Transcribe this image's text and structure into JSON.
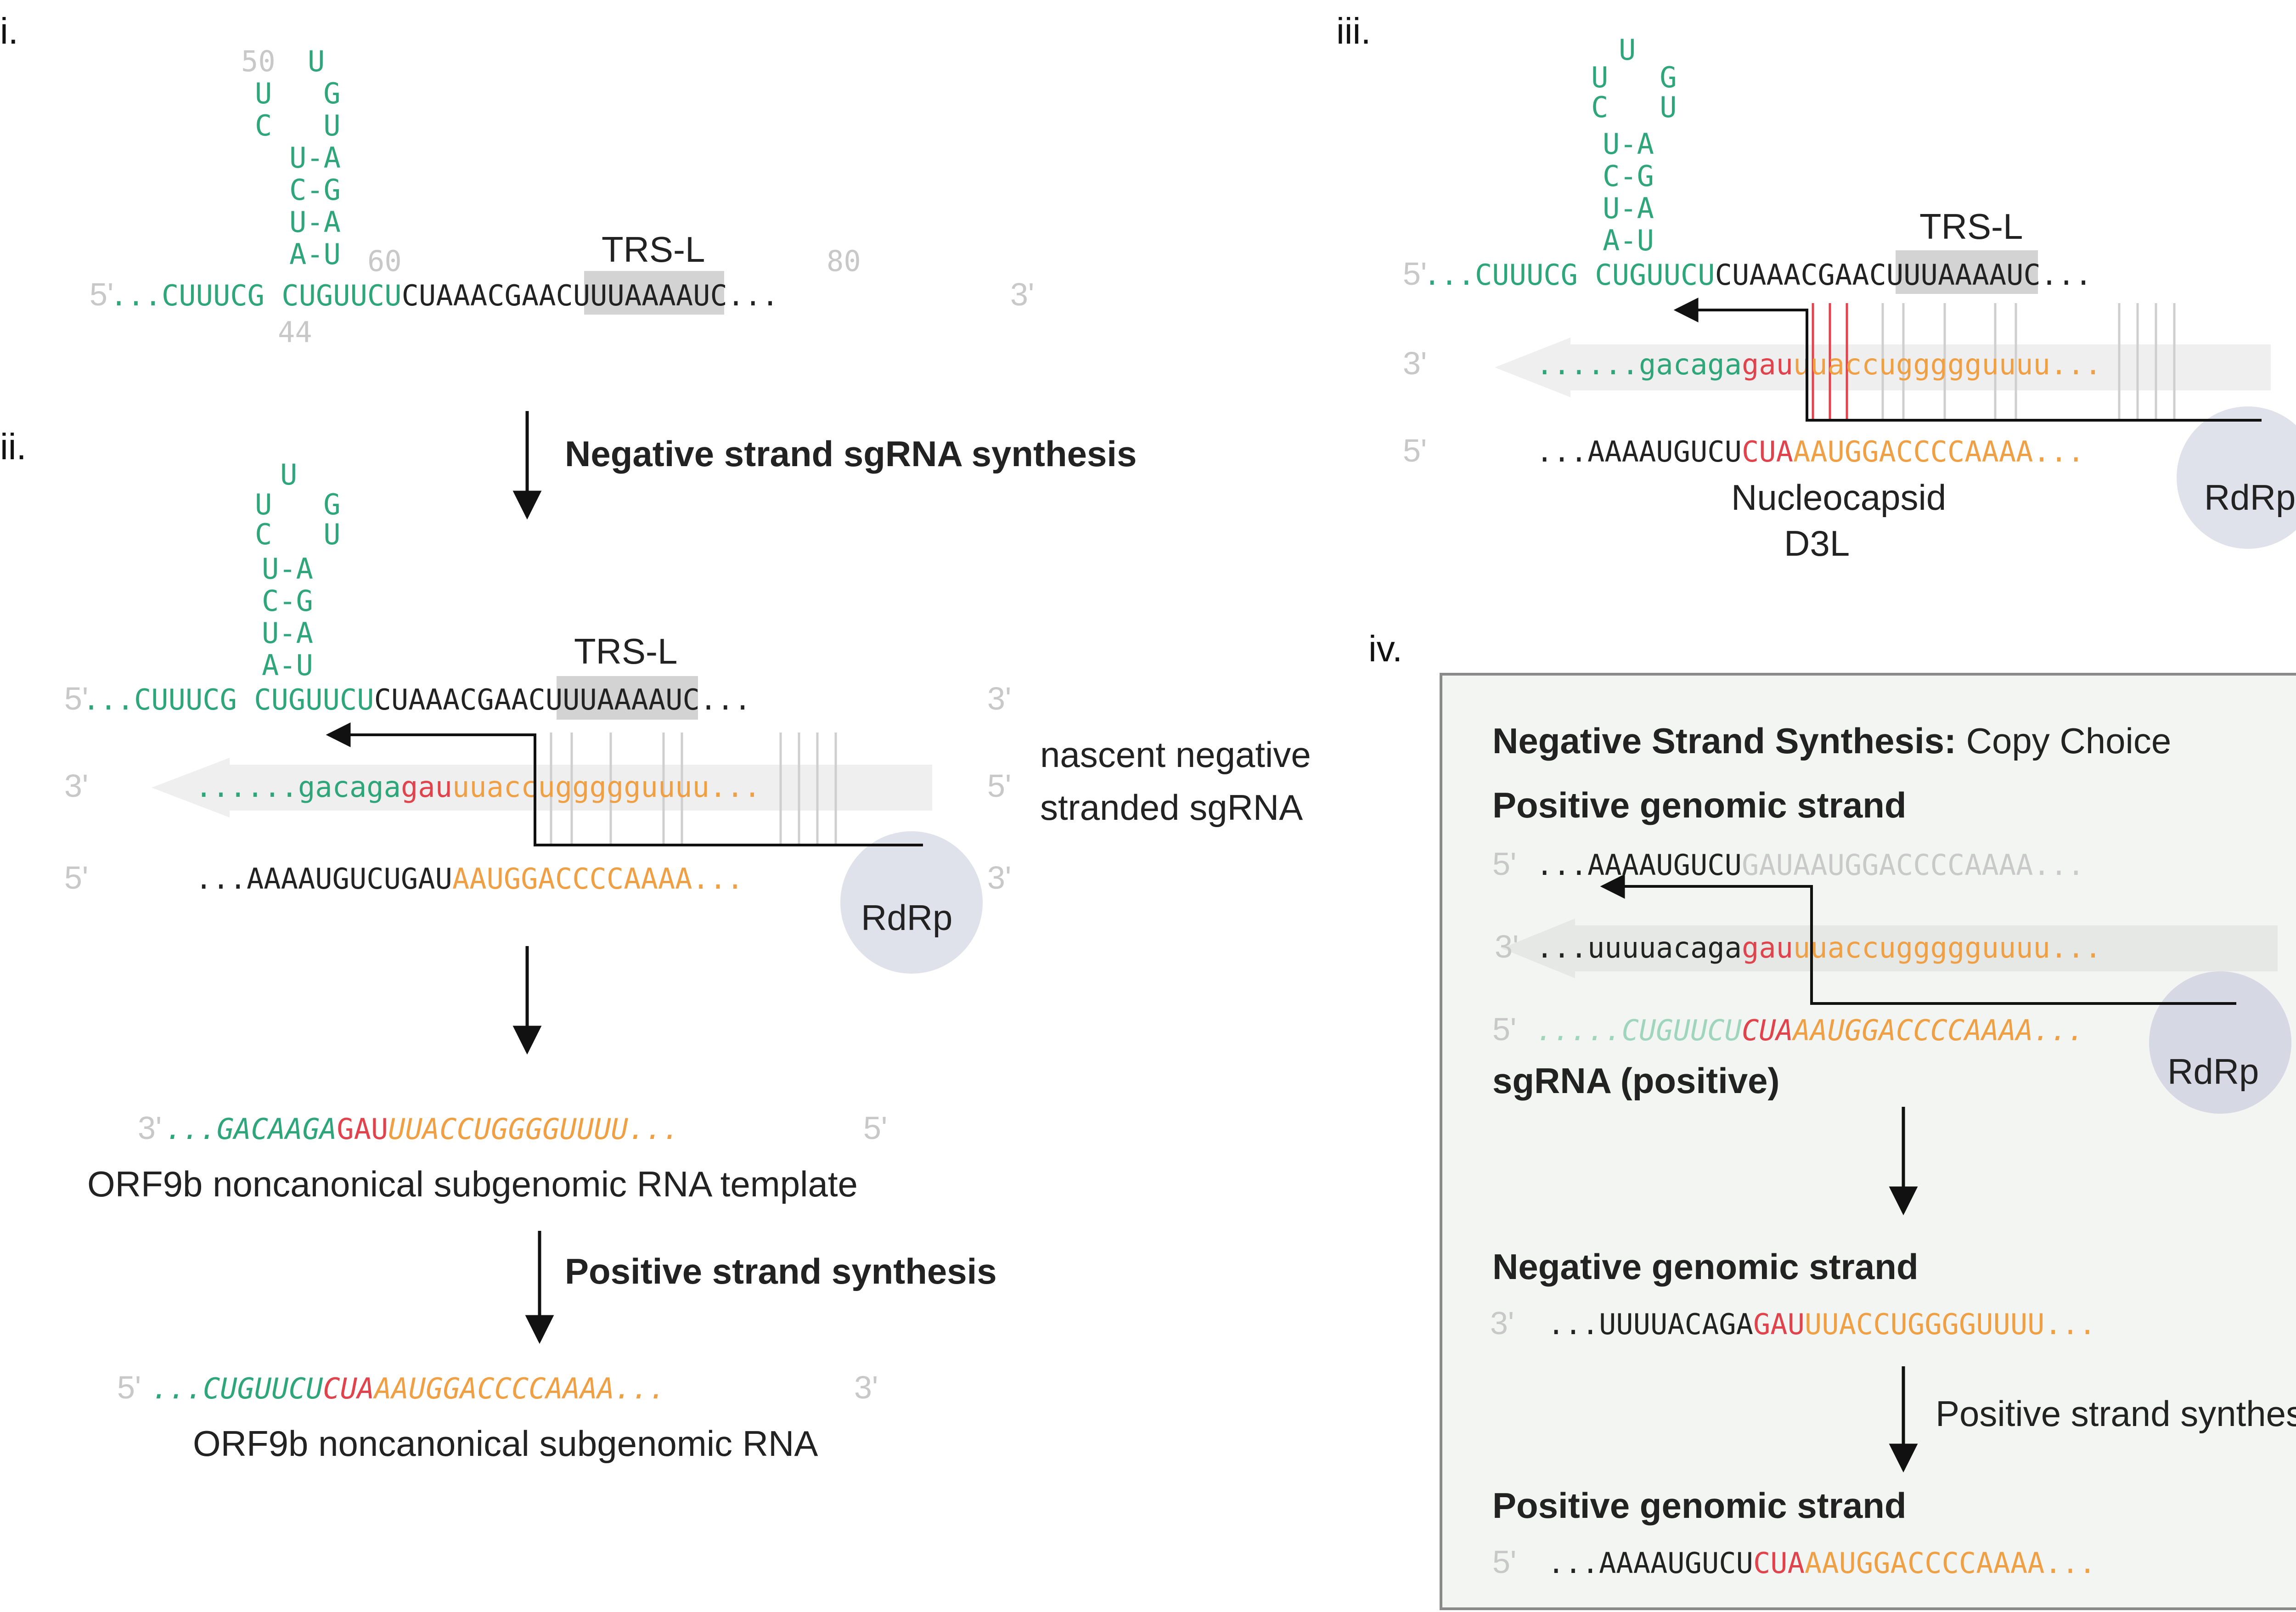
{
  "panels": {
    "i": {
      "label": "i.",
      "hairpin_rows": [
        "U",
        "U   G",
        "C   U",
        "U-A",
        "C-G",
        "U-A",
        "A-U"
      ],
      "num_50": "50",
      "num_60": "60",
      "num_80": "80",
      "num_44": "44",
      "trs": "TRS-L",
      "seq_5": "5'",
      "seq_3": "3'",
      "seq": {
        "dots1": "...",
        "green": "CUUUCG CUGUUCU",
        "black1": "CUAA",
        "box": "ACGAAC",
        "black2": "UUUAAAAUC",
        "dots2": "..."
      }
    },
    "ii": {
      "label": "ii.",
      "step1": "Negative strand sgRNA synthesis",
      "hairpin_rows": [
        "U",
        "U   G",
        "C   U",
        "U-A",
        "C-G",
        "U-A",
        "A-U"
      ],
      "trs": "TRS-L",
      "top": {
        "p5": "5'",
        "p3": "3'",
        "dots1": "...",
        "green": "CUUUCG CUGUUCU",
        "black1": "CUAA",
        "box": "ACGAAC",
        "black2": "UUUAAAAUC",
        "dots2": "..."
      },
      "nascent": {
        "p3": "3'",
        "p5": "5'",
        "dots1": "......",
        "green": "gacaga",
        "red": "gau",
        "orange": "uuaccuggggguuuu",
        "dots2": "..."
      },
      "bottom": {
        "p5": "5'",
        "p3": "3'",
        "dots1": "...",
        "black": "AAAAUGUCUGAU",
        "orange": "AAUGGACCCCAAAA",
        "dots2": "..."
      },
      "nascent_note_1": "nascent negative",
      "nascent_note_2": "stranded sgRNA",
      "rdrp": "RdRp",
      "template": {
        "p3": "3'",
        "p5": "5'",
        "dots1": "...",
        "green": "GACAAGA",
        "red": "GAU",
        "orange": "UUACCUGGGGUUUU",
        "dots2": "..."
      },
      "template_caption": "ORF9b noncanonical subgenomic RNA template",
      "step2": "Positive strand synthesis",
      "final": {
        "p5": "5'",
        "p3": "3'",
        "dots1": "...",
        "green": "CUGUUCU",
        "red": "CUA",
        "orange": "AAUGGACCCCAAAA",
        "dots2": "..."
      },
      "final_caption": "ORF9b noncanonical subgenomic RNA"
    },
    "iii": {
      "label": "iii.",
      "hairpin_rows": [
        "U",
        "U   G",
        "C   U",
        "U-A",
        "C-G",
        "U-A",
        "A-U"
      ],
      "trs": "TRS-L",
      "top": {
        "p5": "5'",
        "p3": "3'",
        "dots1": "...",
        "green": "CUUUCG CUGUUCU",
        "black1": "CUAA",
        "box": "ACGAAC",
        "black2": "UUUAAAAUC",
        "dots2": "..."
      },
      "nascent": {
        "p3": "3'",
        "p5": "5'",
        "dots1": "......",
        "green": "gacaga",
        "red": "gau",
        "orange": "uuaccuggggguuuu",
        "dots2": "..."
      },
      "bottom": {
        "p5": "5'",
        "p3": "3'",
        "dots1": "...",
        "black": "AAAAUGUCU",
        "red": "CUA",
        "orange": "AAUGGACCCCAAAA",
        "dots2": "..."
      },
      "gene1": "Nucleocapsid",
      "gene2": "D3L",
      "rdrp": "RdRp"
    },
    "iv": {
      "label": "iv.",
      "title_bold": "Negative Strand Synthesis:",
      "title_rest": " Copy Choice",
      "pos_genomic": "Positive genomic strand",
      "row1": {
        "p5": "5'",
        "p3": "3'",
        "dots1": "...",
        "black": "AAAAUGUCU",
        "grey": "GAUAAUGGACCCCAAAA...",
        "dots2": ""
      },
      "row2": {
        "p3": "3'",
        "p5": "5'",
        "dots1": "...",
        "black": "uuuuacaga",
        "red": "gau",
        "orange": "uuaccuggggguuuu",
        "dots2": "..."
      },
      "row3": {
        "p5": "5'",
        "p3": "3'",
        "dots1": ".....",
        "lgreen": "CUGUUCU",
        "red": "CUA",
        "orange": "AAUGGACCCCAAAA",
        "dots2": "..."
      },
      "sgrna": "sgRNA (positive)",
      "rdrp": "RdRp",
      "neg_genomic": "Negative genomic strand",
      "row4": {
        "p3": "3'",
        "p5": "5'",
        "dots1": "...",
        "black": "UUUUACAGA",
        "red": "GAU",
        "orange": "UUACCUGGGGUUUU",
        "dots2": "..."
      },
      "step": "Positive strand synthesis",
      "pos_genomic2": "Positive genomic strand",
      "row5": {
        "p5": "5'",
        "p3": "3'",
        "dots1": "...",
        "black": "AAAAUGUCU",
        "red": "CUA",
        "orange": "AAUGGACCCCAAAA",
        "dots2": "..."
      }
    }
  },
  "colors": {
    "green": "#2ea57a",
    "red": "#e0434c",
    "orange": "#f0a044",
    "grey": "#c9c9c9",
    "rdrp": "#dfe2ea",
    "box": "#f3f5f3"
  }
}
